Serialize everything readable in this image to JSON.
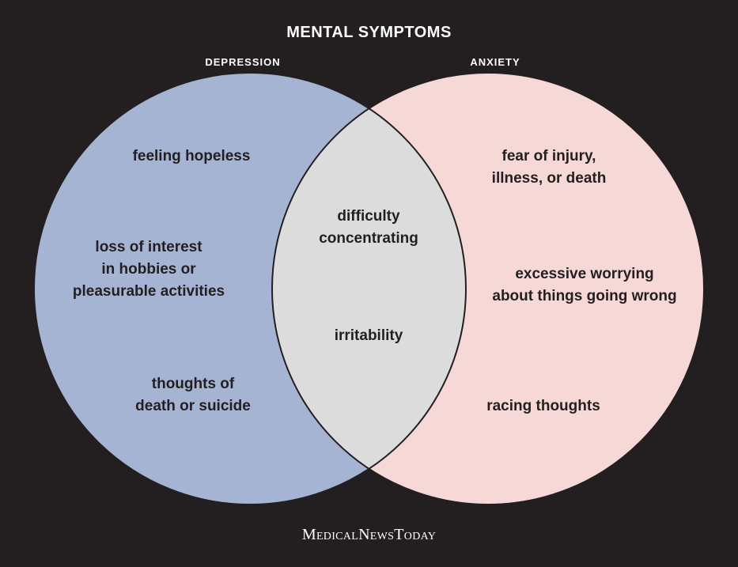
{
  "title": "MENTAL SYMPTOMS",
  "sets": {
    "depression": {
      "label": "DEPRESSION",
      "color": "#a6b4d4",
      "items": [
        "feeling hopeless",
        "loss of interest\nin hobbies or\npleasurable activities",
        "thoughts of\ndeath or suicide"
      ]
    },
    "anxiety": {
      "label": "ANXIETY",
      "color": "#f6d8d6",
      "items": [
        "fear of injury,\nillness, or death",
        "excessive worrying\nabout things going wrong",
        "racing thoughts"
      ]
    },
    "overlap": {
      "color": "#dcdcdc",
      "items": [
        "difficulty\nconcentrating",
        "irritability"
      ]
    }
  },
  "brand": "MedicalNewsToday",
  "colors": {
    "background": "#231f20",
    "outline": "#231f20",
    "text_dark": "#231f20",
    "text_light": "#ffffff"
  }
}
